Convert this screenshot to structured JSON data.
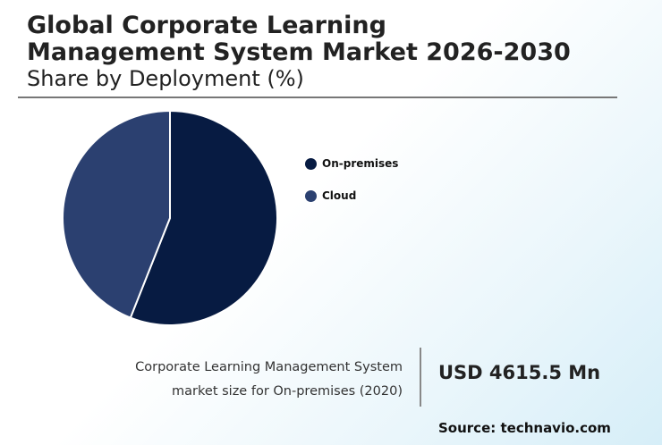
{
  "header": {
    "title_line1": "Global Corporate Learning",
    "title_line2": "Management System Market 2026-2030",
    "subtitle": "Share by Deployment (%)"
  },
  "chart_data": {
    "type": "pie",
    "title": "Global Corporate Learning Management System Market 2026-2030",
    "subtitle": "Share by Deployment (%)",
    "categories": [
      "On-premises",
      "Cloud"
    ],
    "values": [
      56,
      44
    ],
    "colors": [
      "#071b42",
      "#2b4070"
    ],
    "legend_position": "right"
  },
  "legend": {
    "items": [
      {
        "label": "On-premises",
        "color": "#071b42"
      },
      {
        "label": "Cloud",
        "color": "#2b4070"
      }
    ]
  },
  "footer": {
    "description_line1": "Corporate Learning Management System",
    "description_line2": "market size for On-premises (2020)",
    "value": "USD 4615.5 Mn",
    "source": "Source: technavio.com"
  }
}
